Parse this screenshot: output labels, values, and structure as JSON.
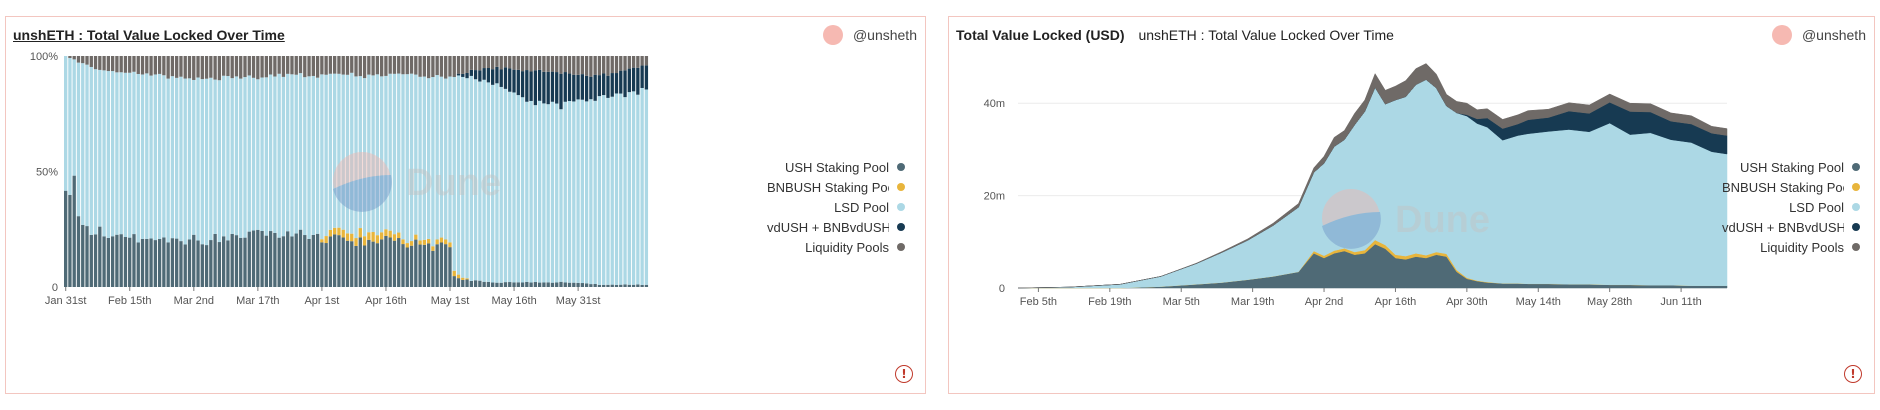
{
  "charts": [
    {
      "title": "unshETH : Total Value Locked Over Time",
      "subtitle": "",
      "author": "@unsheth",
      "watermark": "Dune"
    },
    {
      "title": "Total Value Locked (USD)",
      "subtitle": "unshETH : Total Value Locked Over Time",
      "author": "@unsheth",
      "watermark": "Dune"
    }
  ],
  "colors": {
    "USH Staking Pool": "#4f6a76",
    "BNBUSH Staking Pool": "#e8b53c",
    "LSD Pool": "#acd8e5",
    "vdUSH + BNBvdUSH": "#173a52",
    "Liquidity Pools": "#6f6a67"
  },
  "chart_data": [
    {
      "type": "bar",
      "stacking": "percent",
      "x_tick_labels": [
        "Jan 31st",
        "Feb 15th",
        "Mar 2nd",
        "Mar 17th",
        "Apr 1st",
        "Apr 16th",
        "May 1st",
        "May 16th",
        "May 31st"
      ],
      "y_tick_labels": [
        "0",
        "50%",
        "100%"
      ],
      "ylim": [
        0,
        100
      ],
      "legend_position": "right",
      "anchor_days": [
        0,
        5,
        10,
        15,
        20,
        25,
        30,
        35,
        40,
        45,
        50,
        55,
        59,
        61,
        65,
        70,
        75,
        80,
        85,
        90,
        91,
        95,
        100,
        105,
        110,
        115,
        120,
        125,
        130,
        135,
        136
      ],
      "series": [
        {
          "name": "USH Staking Pool",
          "values": [
            42,
            24,
            22,
            21,
            20,
            19,
            20,
            21,
            22,
            25,
            22,
            24,
            22,
            21,
            20,
            20,
            20,
            19,
            18,
            17,
            4,
            3,
            2,
            2,
            2,
            2,
            2,
            1,
            1,
            1,
            1
          ]
        },
        {
          "name": "BNBUSH Staking Pool",
          "values": [
            0,
            0,
            0,
            0,
            0,
            0,
            0,
            0,
            0,
            0,
            0,
            0,
            0,
            3,
            3,
            4,
            3,
            2,
            2,
            2,
            2,
            0,
            0,
            0,
            0,
            0,
            0,
            0,
            0,
            0,
            0
          ]
        },
        {
          "name": "LSD Pool",
          "values": [
            58,
            72,
            71,
            72,
            72,
            72,
            70,
            69,
            69,
            66,
            70,
            68,
            69,
            68,
            69,
            67,
            69,
            71,
            71,
            72,
            85,
            88,
            86,
            82,
            78,
            77,
            78,
            80,
            82,
            84,
            84
          ]
        },
        {
          "name": "vdUSH + BNBvdUSH",
          "values": [
            0,
            0,
            0,
            0,
            0,
            0,
            0,
            0,
            0,
            0,
            0,
            0,
            0,
            0,
            0,
            0,
            0,
            0,
            0,
            0,
            0,
            3,
            7,
            10,
            14,
            14,
            12,
            10,
            10,
            11,
            11
          ]
        },
        {
          "name": "Liquidity Pools",
          "values": [
            0,
            4,
            7,
            7,
            8,
            9,
            10,
            10,
            9,
            9,
            8,
            8,
            9,
            8,
            8,
            9,
            8,
            8,
            9,
            9,
            9,
            6,
            5,
            6,
            6,
            7,
            8,
            9,
            7,
            4,
            4
          ]
        }
      ]
    },
    {
      "type": "area",
      "stacking": "normal",
      "x_tick_labels": [
        "Feb 5th",
        "Feb 19th",
        "Mar 5th",
        "Mar 19th",
        "Apr 2nd",
        "Apr 16th",
        "Apr 30th",
        "May 14th",
        "May 28th",
        "Jun 11th"
      ],
      "y_tick_labels": [
        "0",
        "20m",
        "40m"
      ],
      "ylim": [
        0,
        50
      ],
      "legend_position": "right",
      "x_days": [
        0,
        10,
        20,
        28,
        35,
        40,
        45,
        50,
        55,
        58,
        60,
        62,
        64,
        66,
        68,
        70,
        72,
        74,
        76,
        78,
        80,
        82,
        84,
        86,
        88,
        90,
        92,
        95,
        98,
        100,
        104,
        108,
        112,
        116,
        120,
        124,
        128,
        132,
        136,
        139
      ],
      "series": [
        {
          "name": "USH Staking Pool",
          "values": [
            0,
            0,
            0,
            0.3,
            0.8,
            1.2,
            1.8,
            2.5,
            3.5,
            7.5,
            6.5,
            7.5,
            8,
            7.2,
            7.5,
            9.5,
            8.5,
            6.5,
            6.2,
            6.8,
            6.5,
            7.2,
            6.8,
            3.5,
            2,
            1.5,
            1.2,
            1,
            1,
            0.9,
            0.9,
            0.8,
            0.8,
            0.7,
            0.7,
            0.6,
            0.6,
            0.5,
            0.5,
            0.5
          ]
        },
        {
          "name": "BNBUSH Staking Pool",
          "values": [
            0,
            0,
            0,
            0,
            0,
            0,
            0,
            0,
            0,
            0.5,
            0.5,
            0.6,
            0.6,
            0.6,
            0.7,
            0.9,
            0.8,
            0.7,
            0.7,
            0.7,
            0.6,
            0.6,
            0.6,
            0.4,
            0.2,
            0.1,
            0.1,
            0,
            0,
            0,
            0,
            0,
            0,
            0,
            0,
            0,
            0,
            0,
            0,
            0
          ]
        },
        {
          "name": "LSD Pool",
          "values": [
            0,
            0.2,
            0.8,
            2.2,
            4.5,
            6.5,
            8.5,
            11,
            14,
            17,
            20,
            22.5,
            23.5,
            27.5,
            30,
            33,
            30.5,
            33.5,
            34.5,
            36.5,
            38,
            35.5,
            32,
            34,
            35,
            34,
            33.5,
            31,
            32,
            32.5,
            33,
            33.5,
            33,
            35,
            32.5,
            33,
            31.5,
            31,
            29,
            28.5
          ]
        },
        {
          "name": "vdUSH + BNBvdUSH",
          "values": [
            0,
            0,
            0,
            0,
            0,
            0,
            0,
            0,
            0,
            0,
            0,
            0,
            0,
            0,
            0,
            0,
            0,
            0,
            0,
            0,
            0,
            0,
            0,
            0,
            0.3,
            1,
            2,
            2.5,
            2.5,
            3,
            3,
            4,
            4,
            4.5,
            5,
            4.5,
            4,
            4,
            4,
            4
          ]
        },
        {
          "name": "Liquidity Pools",
          "values": [
            0,
            0,
            0,
            0,
            0.1,
            0.2,
            0.3,
            0.5,
            0.8,
            1,
            1.5,
            2,
            2,
            2.5,
            2.5,
            3,
            3,
            3,
            3.5,
            3.5,
            3.5,
            3,
            2.5,
            2.5,
            2.5,
            2,
            2,
            2,
            2,
            2,
            1.8,
            1.8,
            1.8,
            1.8,
            1.8,
            1.8,
            1.8,
            1.8,
            1.5,
            1.5
          ]
        }
      ]
    }
  ]
}
